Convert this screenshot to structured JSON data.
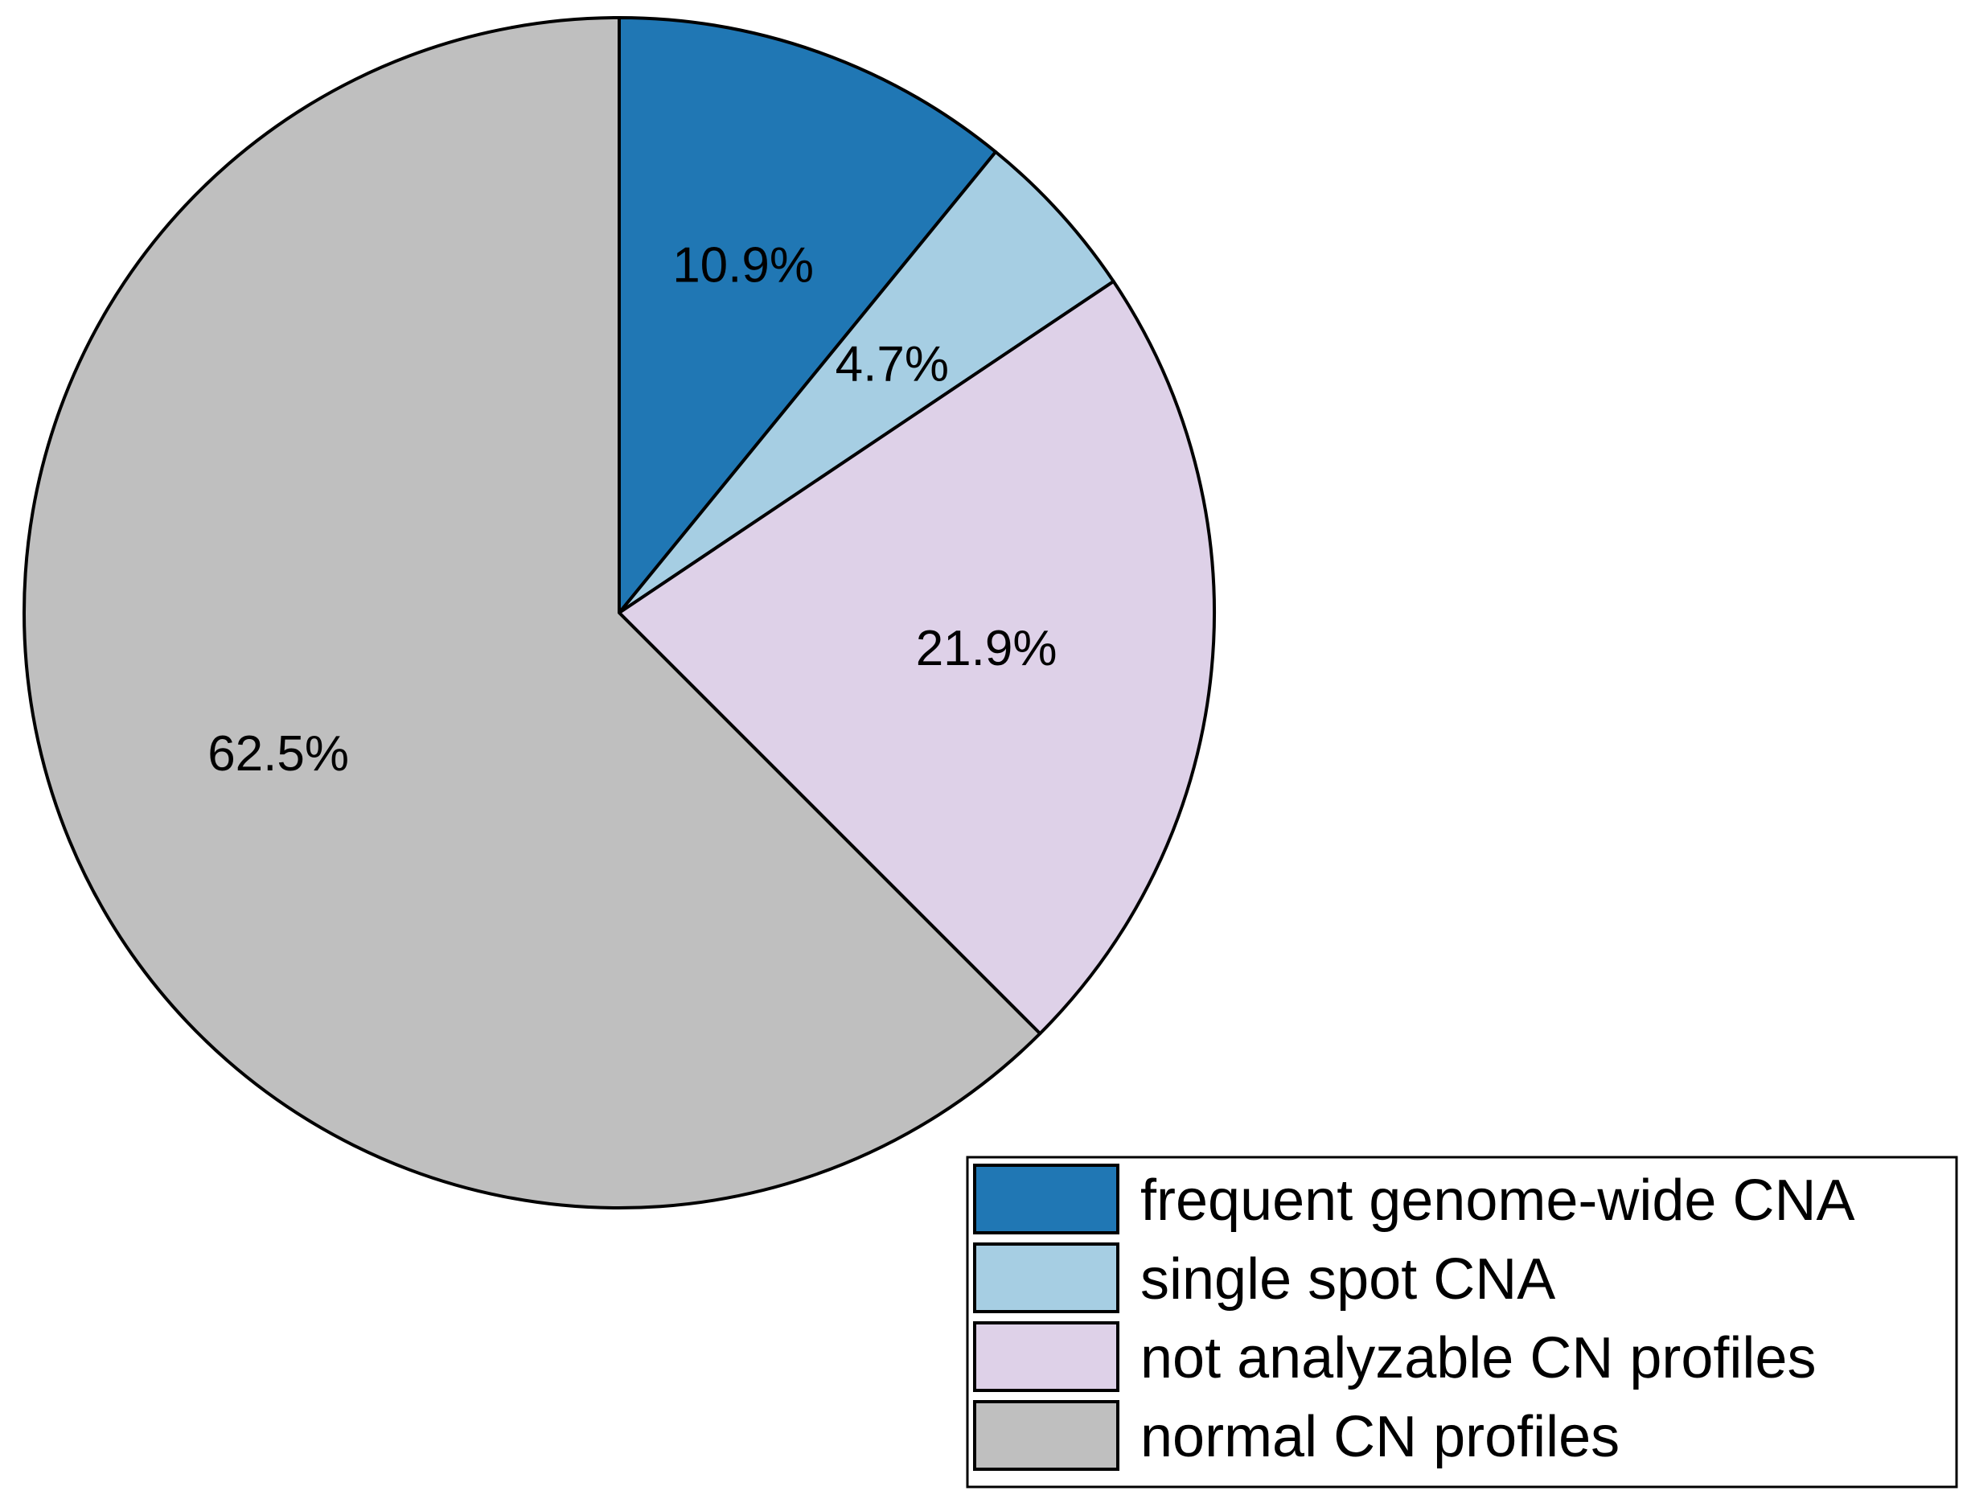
{
  "chart_data": {
    "type": "pie",
    "start_angle_deg": 90,
    "direction": "clockwise",
    "slices": [
      {
        "label": "frequent genome-wide CNA",
        "value": 10.9,
        "value_label": "10.9%",
        "color": "#2077b4"
      },
      {
        "label": "single spot CNA",
        "value": 4.7,
        "value_label": "4.7%",
        "color": "#a6cee3"
      },
      {
        "label": "not analyzable CN profiles",
        "value": 21.9,
        "value_label": "21.9%",
        "color": "#ded1e8"
      },
      {
        "label": "normal CN profiles",
        "value": 62.5,
        "value_label": "62.5%",
        "color": "#bfbfbf"
      }
    ],
    "legend": {
      "position": "bottom-right",
      "entries": [
        "frequent genome-wide CNA",
        "single spot CNA",
        "not analyzable CN profiles",
        "normal CN profiles"
      ]
    }
  }
}
